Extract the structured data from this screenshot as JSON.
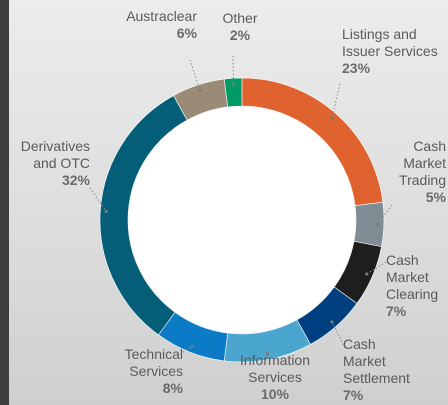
{
  "chart_data": {
    "type": "pie",
    "donut": true,
    "categories": [
      "Listings and Issuer Services",
      "Cash Market Trading",
      "Cash Market Clearing",
      "Cash Market Settlement",
      "Information Services",
      "Technical Services",
      "Derivatives and OTC",
      "Austraclear",
      "Other"
    ],
    "values": [
      23,
      5,
      7,
      7,
      10,
      8,
      32,
      6,
      2
    ],
    "value_labels": [
      "23%",
      "5%",
      "7%",
      "7%",
      "10%",
      "8%",
      "32%",
      "6%",
      "2%"
    ],
    "colors": [
      "#e0622f",
      "#7f8c94",
      "#1e1e1e",
      "#003f7f",
      "#4aa6cf",
      "#0a7bc4",
      "#045e78",
      "#9a8a76",
      "#009a66"
    ]
  }
}
